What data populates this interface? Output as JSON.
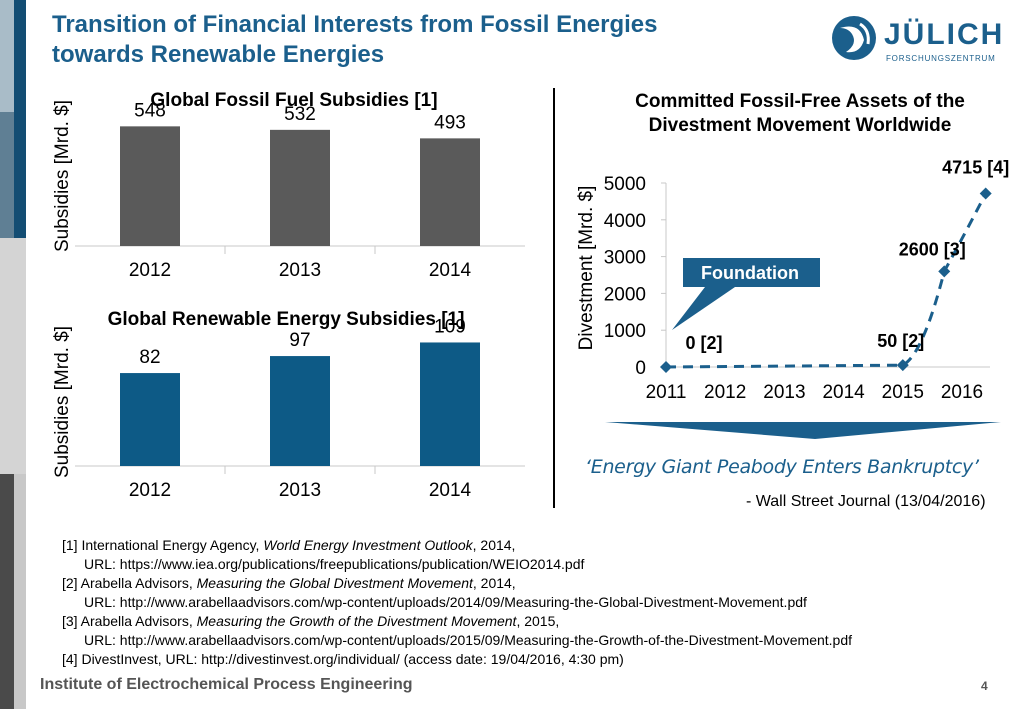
{
  "title_line1": "Transition of Financial Interests from Fossil Energies",
  "title_line2": "towards Renewable Energies",
  "logo": {
    "name": "JÜLICH",
    "sub": "FORSCHUNGSZENTRUM"
  },
  "colors": {
    "accent": "#1b5f8c",
    "fossil_bar": "#5a5a5a",
    "renewable_bar": "#0d5a86",
    "line": "#1b5f8c"
  },
  "chart_data": [
    {
      "type": "bar",
      "title": "Global Fossil Fuel Subsidies [1]",
      "ylabel": "Subsidies [Mrd. $]",
      "categories": [
        "2012",
        "2013",
        "2014"
      ],
      "values": [
        548,
        532,
        493
      ],
      "ylim": [
        0,
        600
      ]
    },
    {
      "type": "bar",
      "title": "Global Renewable Energy Subsidies [1]",
      "ylabel": "Subsidies [Mrd. $]",
      "categories": [
        "2012",
        "2013",
        "2014"
      ],
      "values": [
        82,
        97,
        109
      ],
      "ylim": [
        0,
        120
      ]
    },
    {
      "type": "line",
      "title": "Committed Fossil-Free Assets of the Divestment Movement Worldwide",
      "title_line1": "Committed Fossil-Free Assets of the",
      "title_line2": "Divestment Movement Worldwide",
      "ylabel": "Divestment [Mrd. $]",
      "x_ticks": [
        "2011",
        "2012",
        "2013",
        "2014",
        "2015",
        "2016"
      ],
      "y_ticks": [
        "0",
        "1000",
        "2000",
        "3000",
        "4000",
        "5000"
      ],
      "ylim": [
        0,
        5000
      ],
      "xlim": [
        2011,
        2016
      ],
      "points": [
        {
          "x": 2011.0,
          "y": 0,
          "label": "0 [2]"
        },
        {
          "x": 2015.0,
          "y": 50,
          "label": "50 [2]"
        },
        {
          "x": 2015.7,
          "y": 2600,
          "label": "2600 [3]"
        },
        {
          "x": 2016.4,
          "y": 4715,
          "label": "4715 [4]"
        }
      ],
      "callout": "Foundation",
      "grid": false
    }
  ],
  "quote": "‘Energy Giant Peabody Enters Bankruptcy’",
  "quote_source": "- Wall Street Journal (13/04/2016)",
  "refs": {
    "r1_pre": "[1] International Energy Agency, ",
    "r1_it": "World Energy Investment Outlook",
    "r1_post": ", 2014,",
    "r1_url": "URL: https://www.iea.org/publications/freepublications/publication/WEIO2014.pdf",
    "r2_pre": "[2] Arabella Advisors, ",
    "r2_it": "Measuring the Global Divestment Movement",
    "r2_post": ", 2014,",
    "r2_url": "URL: http://www.arabellaadvisors.com/wp-content/uploads/2014/09/Measuring-the-Global-Divestment-Movement.pdf",
    "r3_pre": "[3] Arabella Advisors, ",
    "r3_it": "Measuring the Growth of the Divestment Movement",
    "r3_post": ", 2015,",
    "r3_url": "URL: http://www.arabellaadvisors.com/wp-content/uploads/2015/09/Measuring-the-Growth-of-the-Divestment-Movement.pdf",
    "r4": "[4] DivestInvest, URL: http://divestinvest.org/individual/ (access date: 19/04/2016, 4:30 pm)"
  },
  "footer": "Institute of Electrochemical Process Engineering",
  "page_number": "4"
}
